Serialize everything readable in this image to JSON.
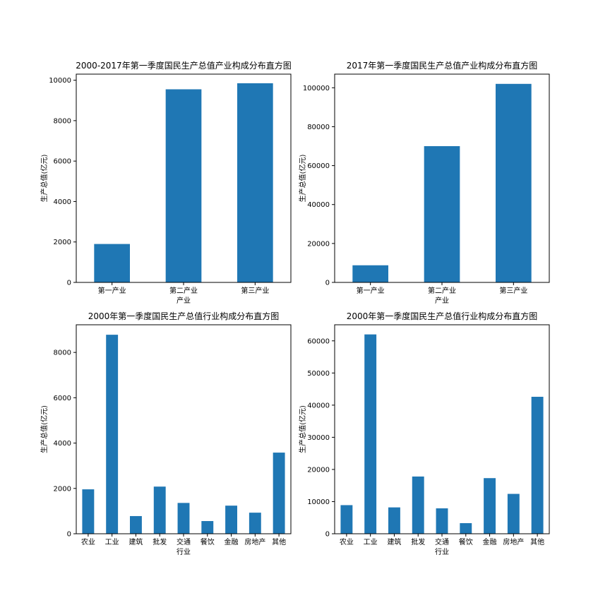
{
  "colors": {
    "bar": "#1f77b4",
    "axis": "#000000",
    "background": "#ffffff"
  },
  "chart_data": [
    {
      "type": "bar",
      "title": "2000-2017年第一季度国民生产总值产业构成分布直方图",
      "xlabel": "产业",
      "ylabel": "生产总值(亿元)",
      "categories": [
        "第一产业",
        "第二产业",
        "第三产业"
      ],
      "values": [
        1900,
        9550,
        9850
      ],
      "ylim": [
        0,
        10300
      ],
      "yticks": [
        0,
        2000,
        4000,
        6000,
        8000,
        10000
      ],
      "grid": false,
      "legend": "none"
    },
    {
      "type": "bar",
      "title": "2017年第一季度国民生产总值产业构成分布直方图",
      "xlabel": "产业",
      "ylabel": "生产总值(亿元)",
      "categories": [
        "第一产业",
        "第二产业",
        "第三产业"
      ],
      "values": [
        8800,
        70000,
        102000
      ],
      "ylim": [
        0,
        107000
      ],
      "yticks": [
        0,
        20000,
        40000,
        60000,
        80000,
        100000
      ],
      "grid": false,
      "legend": "none"
    },
    {
      "type": "bar",
      "title": "2000年第一季度国民生产总值行业构成分布直方图",
      "xlabel": "行业",
      "ylabel": "生产总值(亿元)",
      "categories": [
        "农业",
        "工业",
        "建筑",
        "批发",
        "交通",
        "餐饮",
        "金融",
        "房地产",
        "其他"
      ],
      "values": [
        1960,
        8780,
        780,
        2080,
        1360,
        560,
        1240,
        930,
        3580
      ],
      "ylim": [
        0,
        9220
      ],
      "yticks": [
        0,
        2000,
        4000,
        6000,
        8000
      ],
      "grid": false,
      "legend": "none"
    },
    {
      "type": "bar",
      "title": "2000年第一季度国民生产总值行业构成分布直方图",
      "xlabel": "行业",
      "ylabel": "生产总值(亿元)",
      "categories": [
        "农业",
        "工业",
        "建筑",
        "批发",
        "交通",
        "餐饮",
        "金融",
        "房地产",
        "其他"
      ],
      "values": [
        8900,
        62000,
        8200,
        17800,
        7900,
        3300,
        17300,
        12400,
        42600
      ],
      "ylim": [
        0,
        65000
      ],
      "yticks": [
        0,
        10000,
        20000,
        30000,
        40000,
        50000,
        60000
      ],
      "grid": false,
      "legend": "none"
    }
  ]
}
